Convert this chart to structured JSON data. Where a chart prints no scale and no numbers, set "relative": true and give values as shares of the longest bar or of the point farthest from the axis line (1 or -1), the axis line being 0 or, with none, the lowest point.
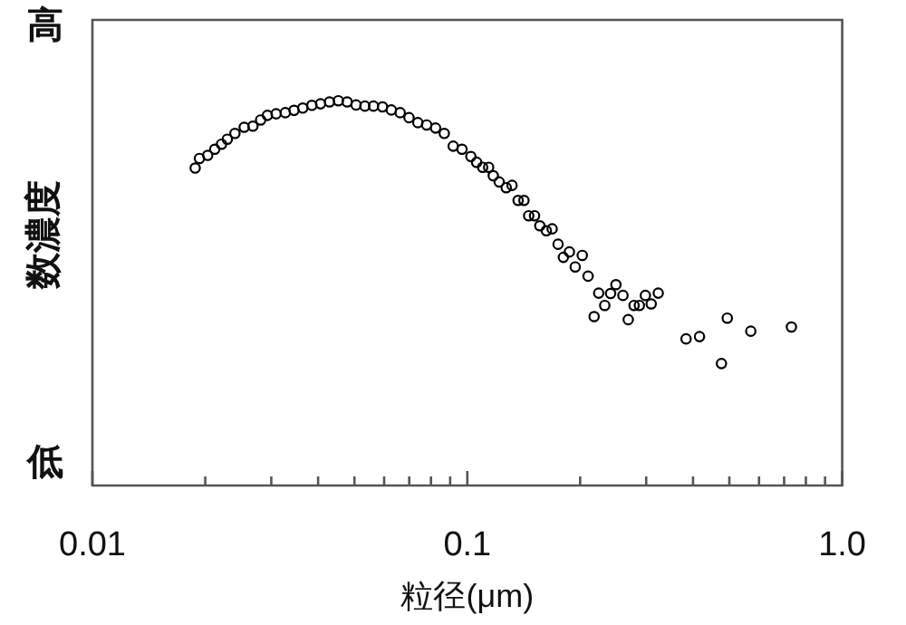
{
  "chart_data": {
    "type": "scatter",
    "relative": true,
    "xlabel": "粒径(μm)",
    "ylabel": "数濃度",
    "annotations": [
      "高",
      "低"
    ],
    "log": "x",
    "grid": false,
    "legend": false,
    "marker": "circle",
    "tick_labels": "x",
    "xlim": [
      0.01,
      1
    ],
    "xticks": [
      0.01,
      {
        "value": 0.02,
        "label": null
      },
      {
        "value": 0.03,
        "label": null
      },
      {
        "value": 0.04,
        "label": null
      },
      {
        "value": 0.05,
        "label": null
      },
      {
        "value": 0.06,
        "label": null
      },
      {
        "value": 0.07,
        "label": null
      },
      {
        "value": 0.08,
        "label": null
      },
      {
        "value": 0.09,
        "label": null
      },
      0.1,
      {
        "value": 0.2,
        "label": null
      },
      {
        "value": 0.3,
        "label": null
      },
      {
        "value": 0.4,
        "label": null
      },
      {
        "value": 0.5,
        "label": null
      },
      {
        "value": 0.6,
        "label": null
      },
      {
        "value": 0.7,
        "label": null
      },
      {
        "value": 0.8,
        "label": null
      },
      {
        "value": 0.9,
        "label": null
      },
      {
        "value": 1,
        "label": "1.0"
      }
    ],
    "series": [
      {
        "color": "#000000",
        "x": [
          0.0188,
          0.0193,
          0.0203,
          0.0212,
          0.0221,
          0.0229,
          0.024,
          0.0254,
          0.0268,
          0.0281,
          0.0293,
          0.0309,
          0.0327,
          0.0345,
          0.0364,
          0.0385,
          0.0406,
          0.0429,
          0.0453,
          0.0478,
          0.0505,
          0.0533,
          0.0562,
          0.0594,
          0.0627,
          0.0662,
          0.0699,
          0.0738,
          0.0779,
          0.0823,
          0.0868,
          0.0917,
          0.0968,
          0.1022,
          0.1059,
          0.1099,
          0.114,
          0.1173,
          0.1216,
          0.127,
          0.1316,
          0.1366,
          0.1416,
          0.1458,
          0.1511,
          0.1561,
          0.1625,
          0.1684,
          0.1746,
          0.1804,
          0.1872,
          0.194,
          0.2026,
          0.21,
          0.2179,
          0.2241,
          0.2326,
          0.2411,
          0.2491,
          0.2601,
          0.2687,
          0.2785,
          0.2877,
          0.2985,
          0.3094,
          0.3231,
          0.3833,
          0.4163,
          0.4763,
          0.4937,
          0.5703,
          0.732
        ],
        "values": [
          0.825,
          0.85,
          0.858,
          0.874,
          0.887,
          0.9,
          0.915,
          0.931,
          0.934,
          0.95,
          0.962,
          0.966,
          0.969,
          0.975,
          0.981,
          0.988,
          0.992,
          0.997,
          1,
          0.997,
          0.989,
          0.986,
          0.986,
          0.984,
          0.976,
          0.969,
          0.956,
          0.943,
          0.937,
          0.929,
          0.915,
          0.882,
          0.874,
          0.855,
          0.84,
          0.827,
          0.827,
          0.805,
          0.789,
          0.774,
          0.78,
          0.741,
          0.741,
          0.701,
          0.701,
          0.675,
          0.662,
          0.667,
          0.627,
          0.593,
          0.607,
          0.568,
          0.598,
          0.544,
          0.439,
          0.5,
          0.468,
          0.499,
          0.522,
          0.494,
          0.431,
          0.468,
          0.468,
          0.494,
          0.472,
          0.5,
          0.381,
          0.387,
          0.317,
          0.435,
          0.401,
          0.412
        ]
      }
    ]
  }
}
